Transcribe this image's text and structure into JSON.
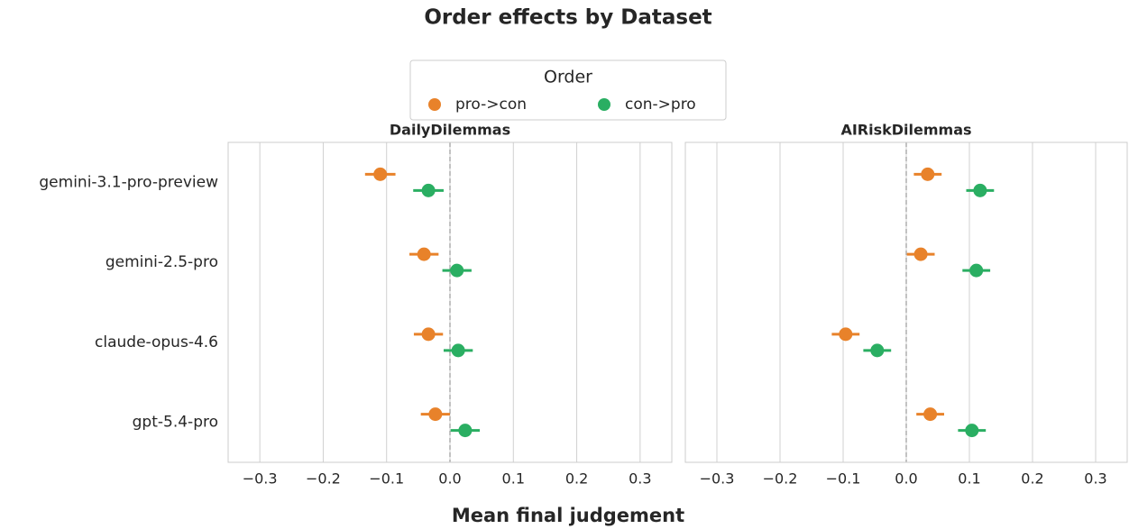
{
  "title": "Order effects by Dataset",
  "xlabel": "Mean final judgement",
  "legend": {
    "title": "Order"
  },
  "chart_data": [
    {
      "type": "point",
      "title": "DailyDilemmas",
      "categories": [
        "gemini-3.1-pro-preview",
        "gemini-2.5-pro",
        "claude-opus-4.6",
        "gpt-5.4-pro"
      ],
      "series": [
        {
          "name": "pro->con",
          "color": "#e8822a",
          "values": [
            -0.11,
            -0.041,
            -0.034,
            -0.023
          ],
          "errors": [
            0.024,
            0.023,
            0.023,
            0.023
          ]
        },
        {
          "name": "con->pro",
          "color": "#2aae62",
          "values": [
            -0.034,
            0.011,
            0.013,
            0.024
          ],
          "errors": [
            0.024,
            0.023,
            0.023,
            0.023
          ]
        }
      ],
      "xlim": [
        -0.35,
        0.35
      ],
      "xticks": [
        {
          "value": -0.3,
          "label": "−0.3"
        },
        {
          "value": -0.2,
          "label": "−0.2"
        },
        {
          "value": -0.1,
          "label": "−0.1"
        },
        {
          "value": 0,
          "label": "0.0"
        },
        0.1,
        0.2,
        0.3
      ],
      "vline": 0,
      "grid": true
    },
    {
      "type": "point",
      "title": "AIRiskDilemmas",
      "series": [
        {
          "name": "pro->con",
          "color": "#e8822a",
          "values": [
            0.034,
            0.023,
            -0.096,
            0.038
          ],
          "errors": [
            0.022,
            0.022,
            0.022,
            0.022
          ]
        },
        {
          "name": "con->pro",
          "color": "#2aae62",
          "values": [
            0.117,
            0.111,
            -0.046,
            0.104
          ],
          "errors": [
            0.022,
            0.022,
            0.022,
            0.022
          ]
        }
      ],
      "xlim": [
        -0.35,
        0.35
      ],
      "xticks": [
        {
          "value": -0.3,
          "label": "−0.3"
        },
        {
          "value": -0.2,
          "label": "−0.2"
        },
        {
          "value": -0.1,
          "label": "−0.1"
        },
        {
          "value": 0,
          "label": "0.0"
        },
        0.1,
        0.2,
        0.3
      ],
      "vline": 0,
      "grid": true
    }
  ]
}
